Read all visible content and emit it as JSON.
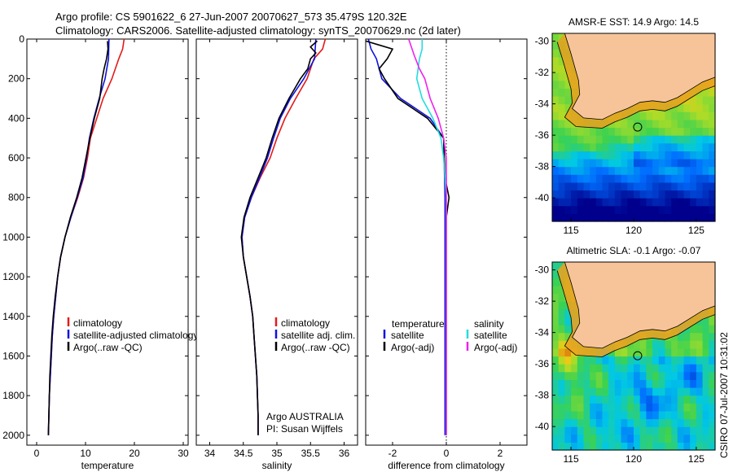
{
  "header": {
    "line1": "Argo profile: CS 5901622_6 27-Jun-2007 20070627_573 35.479S 120.32E",
    "line2": "Climatology: CARS2006. Satellite-adjusted climatology: synTS_20070629.nc (2d later)"
  },
  "footer_text": "CSIRO 07-Jul-2007 10:31:02",
  "colors": {
    "climatology": "#e41a1a",
    "satellite": "#1010e0",
    "argo": "#000000",
    "satellite_sal": "#22dddd",
    "argo_sal": "#ee22ee",
    "land": "#f7c49a"
  },
  "chart_data": [
    {
      "type": "line",
      "id": "temperature",
      "xlabel": "temperature",
      "ylabel": "",
      "xlim": [
        -2,
        31
      ],
      "ylim": [
        2050,
        0
      ],
      "xticks": [
        0,
        10,
        20,
        30
      ],
      "yticks": [
        0,
        200,
        400,
        600,
        800,
        1000,
        1200,
        1400,
        1600,
        1800,
        2000
      ],
      "legend": {
        "position": "bottom-right",
        "entries": [
          "climatology",
          "satellite-adjusted climatology",
          "Argo(..raw -QC)"
        ]
      },
      "series": [
        {
          "name": "climatology",
          "color": "#e41a1a",
          "points": [
            [
              17.9,
              0
            ],
            [
              17.6,
              50
            ],
            [
              16.8,
              100
            ],
            [
              15.4,
              200
            ],
            [
              13.6,
              300
            ],
            [
              12.3,
              400
            ],
            [
              11.0,
              500
            ],
            [
              10.4,
              600
            ],
            [
              9.6,
              700
            ],
            [
              8.4,
              800
            ],
            [
              7.0,
              900
            ],
            [
              5.8,
              1000
            ],
            [
              4.9,
              1100
            ],
            [
              4.3,
              1200
            ],
            [
              3.9,
              1300
            ],
            [
              3.5,
              1400
            ],
            [
              3.2,
              1500
            ],
            [
              3.0,
              1600
            ],
            [
              2.8,
              1700
            ],
            [
              2.6,
              1800
            ],
            [
              2.5,
              1900
            ],
            [
              2.4,
              2000
            ]
          ]
        },
        {
          "name": "satellite-adjusted climatology",
          "color": "#1010e0",
          "points": [
            [
              14.8,
              0
            ],
            [
              14.7,
              100
            ],
            [
              14.0,
              200
            ],
            [
              12.8,
              300
            ],
            [
              11.7,
              400
            ],
            [
              10.8,
              500
            ],
            [
              10.2,
              600
            ],
            [
              9.5,
              700
            ],
            [
              8.3,
              800
            ],
            [
              7.0,
              900
            ],
            [
              5.8,
              1000
            ],
            [
              4.9,
              1100
            ],
            [
              4.3,
              1200
            ],
            [
              3.9,
              1300
            ],
            [
              3.5,
              1400
            ],
            [
              3.2,
              1500
            ],
            [
              3.0,
              1600
            ],
            [
              2.8,
              1700
            ],
            [
              2.6,
              1800
            ],
            [
              2.5,
              1900
            ],
            [
              2.4,
              2000
            ]
          ]
        },
        {
          "name": "Argo(..raw -QC)",
          "color": "#000000",
          "points": [
            [
              14.5,
              10
            ],
            [
              14.6,
              50
            ],
            [
              14.3,
              100
            ],
            [
              13.8,
              150
            ],
            [
              13.4,
              200
            ],
            [
              12.9,
              300
            ],
            [
              11.8,
              400
            ],
            [
              10.9,
              500
            ],
            [
              10.1,
              600
            ],
            [
              9.3,
              700
            ],
            [
              8.2,
              800
            ],
            [
              6.9,
              900
            ],
            [
              5.8,
              1000
            ],
            [
              4.9,
              1100
            ],
            [
              4.3,
              1200
            ],
            [
              3.8,
              1300
            ],
            [
              3.4,
              1400
            ],
            [
              3.1,
              1500
            ],
            [
              2.9,
              1600
            ],
            [
              2.7,
              1700
            ],
            [
              2.6,
              1800
            ],
            [
              2.5,
              1900
            ],
            [
              2.4,
              2000
            ]
          ]
        }
      ]
    },
    {
      "type": "line",
      "id": "salinity",
      "xlabel": "salinity",
      "ylabel": "",
      "xlim": [
        33.8,
        36.2
      ],
      "ylim": [
        2050,
        0
      ],
      "xticks": [
        34,
        34.5,
        35,
        35.5,
        36
      ],
      "legend": {
        "position": "bottom-right",
        "entries": [
          "climatology",
          "satellite adj. clim.",
          "Argo(..raw -QC)"
        ]
      },
      "annotation": [
        "Argo AUSTRALIA",
        "PI: Susan Wijffels"
      ],
      "series": [
        {
          "name": "climatology",
          "color": "#e41a1a",
          "points": [
            [
              35.72,
              0
            ],
            [
              35.68,
              50
            ],
            [
              35.55,
              100
            ],
            [
              35.45,
              200
            ],
            [
              35.28,
              300
            ],
            [
              35.12,
              400
            ],
            [
              35.0,
              500
            ],
            [
              34.9,
              600
            ],
            [
              34.75,
              700
            ],
            [
              34.62,
              800
            ],
            [
              34.52,
              900
            ],
            [
              34.48,
              1000
            ],
            [
              34.5,
              1100
            ],
            [
              34.55,
              1200
            ],
            [
              34.6,
              1300
            ],
            [
              34.64,
              1400
            ],
            [
              34.66,
              1500
            ],
            [
              34.68,
              1600
            ],
            [
              34.7,
              1700
            ],
            [
              34.71,
              1800
            ],
            [
              34.72,
              1900
            ],
            [
              34.72,
              2000
            ]
          ]
        },
        {
          "name": "satellite adj. clim.",
          "color": "#1010e0",
          "points": [
            [
              35.58,
              0
            ],
            [
              35.56,
              100
            ],
            [
              35.4,
              200
            ],
            [
              35.2,
              300
            ],
            [
              35.05,
              400
            ],
            [
              34.95,
              500
            ],
            [
              34.86,
              600
            ],
            [
              34.74,
              700
            ],
            [
              34.62,
              800
            ],
            [
              34.52,
              900
            ],
            [
              34.48,
              1000
            ],
            [
              34.5,
              1100
            ],
            [
              34.55,
              1200
            ],
            [
              34.6,
              1300
            ],
            [
              34.64,
              1400
            ],
            [
              34.66,
              1500
            ],
            [
              34.68,
              1600
            ],
            [
              34.7,
              1700
            ],
            [
              34.71,
              1800
            ],
            [
              34.72,
              1900
            ],
            [
              34.72,
              2000
            ]
          ]
        },
        {
          "name": "Argo(..raw -QC)",
          "color": "#000000",
          "points": [
            [
              35.6,
              10
            ],
            [
              35.5,
              40
            ],
            [
              35.58,
              70
            ],
            [
              35.5,
              100
            ],
            [
              35.46,
              150
            ],
            [
              35.35,
              200
            ],
            [
              35.18,
              300
            ],
            [
              35.03,
              400
            ],
            [
              34.93,
              500
            ],
            [
              34.84,
              600
            ],
            [
              34.72,
              700
            ],
            [
              34.6,
              800
            ],
            [
              34.51,
              900
            ],
            [
              34.47,
              1000
            ],
            [
              34.5,
              1100
            ],
            [
              34.55,
              1200
            ],
            [
              34.6,
              1300
            ],
            [
              34.64,
              1400
            ],
            [
              34.66,
              1500
            ],
            [
              34.68,
              1600
            ],
            [
              34.7,
              1700
            ],
            [
              34.71,
              1800
            ],
            [
              34.72,
              1900
            ],
            [
              34.72,
              2000
            ]
          ]
        }
      ]
    },
    {
      "type": "line",
      "id": "difference",
      "xlabel": "difference from climatology",
      "ylabel": "",
      "xlim": [
        -3,
        3
      ],
      "ylim": [
        2050,
        0
      ],
      "xticks": [
        -2,
        0,
        2
      ],
      "legend": {
        "position": "bottom",
        "groups": [
          {
            "title": "temperature",
            "entries": [
              "satellite",
              "Argo(-adj)"
            ]
          },
          {
            "title": "salinity",
            "entries": [
              "satellite",
              "Argo(-adj)"
            ]
          }
        ]
      },
      "series": [
        {
          "name": "temperature satellite",
          "color": "#1010e0",
          "points": [
            [
              -2.9,
              0
            ],
            [
              -2.8,
              50
            ],
            [
              -2.6,
              100
            ],
            [
              -2.4,
              200
            ],
            [
              -1.7,
              300
            ],
            [
              -0.6,
              400
            ],
            [
              -0.1,
              500
            ],
            [
              -0.05,
              800
            ],
            [
              -0.05,
              1000
            ],
            [
              -0.05,
              1500
            ],
            [
              -0.05,
              2000
            ]
          ]
        },
        {
          "name": "temperature Argo(-adj)",
          "color": "#000000",
          "points": [
            [
              -3.0,
              10
            ],
            [
              -2.5,
              30
            ],
            [
              -2.0,
              50
            ],
            [
              -2.2,
              100
            ],
            [
              -2.5,
              150
            ],
            [
              -2.3,
              200
            ],
            [
              -1.8,
              300
            ],
            [
              -0.7,
              400
            ],
            [
              -0.1,
              500
            ],
            [
              -0.05,
              700
            ],
            [
              0.1,
              800
            ],
            [
              0.0,
              900
            ],
            [
              0.0,
              1000
            ],
            [
              0.0,
              1500
            ],
            [
              0.0,
              2000
            ]
          ]
        },
        {
          "name": "salinity satellite",
          "color": "#22dddd",
          "points": [
            [
              -0.9,
              0
            ],
            [
              -0.9,
              50
            ],
            [
              -1.0,
              100
            ],
            [
              -1.1,
              200
            ],
            [
              -0.9,
              300
            ],
            [
              -0.5,
              400
            ],
            [
              -0.2,
              500
            ],
            [
              -0.1,
              600
            ],
            [
              0.0,
              800
            ],
            [
              0.0,
              1000
            ],
            [
              0.0,
              1500
            ],
            [
              0.0,
              2000
            ]
          ]
        },
        {
          "name": "salinity Argo(-adj)",
          "color": "#ee22ee",
          "points": [
            [
              -1.4,
              0
            ],
            [
              -1.3,
              40
            ],
            [
              -1.2,
              80
            ],
            [
              -1.0,
              150
            ],
            [
              -0.8,
              200
            ],
            [
              -0.6,
              300
            ],
            [
              -0.3,
              400
            ],
            [
              -0.1,
              500
            ],
            [
              0.0,
              600
            ],
            [
              0.0,
              800
            ],
            [
              0.0,
              1000
            ],
            [
              0.0,
              1500
            ],
            [
              0.0,
              2000
            ]
          ]
        }
      ]
    },
    {
      "type": "heatmap",
      "id": "amsr",
      "title": "AMSR-E SST: 14.9 Argo: 14.5",
      "xlim": [
        113.5,
        126.5
      ],
      "ylim": [
        -41.5,
        -29.5
      ],
      "xticks": [
        115,
        120,
        125
      ],
      "yticks": [
        -30,
        -32,
        -34,
        -36,
        -38,
        -40
      ],
      "float_position": [
        120.32,
        -35.479
      ],
      "coast": [
        [
          113.5,
          -29.5
        ],
        [
          114.5,
          -29.5
        ],
        [
          115.0,
          -30.8
        ],
        [
          115.6,
          -32.5
        ],
        [
          115.7,
          -33.4
        ],
        [
          115.1,
          -34.3
        ],
        [
          116.0,
          -34.9
        ],
        [
          117.5,
          -35.0
        ],
        [
          118.5,
          -34.6
        ],
        [
          119.5,
          -34.3
        ],
        [
          120.5,
          -33.9
        ],
        [
          121.5,
          -33.8
        ],
        [
          122.5,
          -33.9
        ],
        [
          123.5,
          -33.6
        ],
        [
          124.5,
          -33.1
        ],
        [
          125.5,
          -32.6
        ],
        [
          126.5,
          -32.3
        ],
        [
          126.5,
          -29.5
        ]
      ]
    },
    {
      "type": "heatmap",
      "id": "altimetry",
      "title": "Altimetric SLA: -0.1 Argo: -0.07",
      "xlim": [
        113.5,
        126.5
      ],
      "ylim": [
        -41.5,
        -29.5
      ],
      "xticks": [
        115,
        120,
        125
      ],
      "yticks": [
        -30,
        -32,
        -34,
        -36,
        -38,
        -40
      ],
      "float_position": [
        120.32,
        -35.479
      ],
      "coast": [
        [
          113.5,
          -29.5
        ],
        [
          114.5,
          -29.5
        ],
        [
          115.0,
          -30.8
        ],
        [
          115.6,
          -32.5
        ],
        [
          115.7,
          -33.4
        ],
        [
          115.1,
          -34.3
        ],
        [
          116.0,
          -34.9
        ],
        [
          117.5,
          -35.0
        ],
        [
          118.5,
          -34.6
        ],
        [
          119.5,
          -34.3
        ],
        [
          120.5,
          -33.9
        ],
        [
          121.5,
          -33.8
        ],
        [
          122.5,
          -33.9
        ],
        [
          123.5,
          -33.6
        ],
        [
          124.5,
          -33.1
        ],
        [
          125.5,
          -32.6
        ],
        [
          126.5,
          -32.3
        ],
        [
          126.5,
          -29.5
        ]
      ]
    }
  ]
}
